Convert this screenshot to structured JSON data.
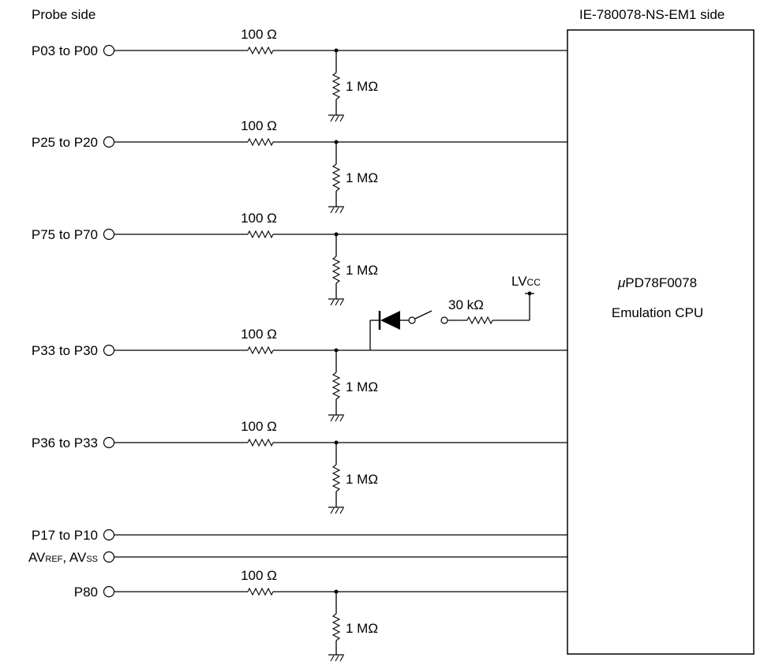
{
  "header": {
    "probe_side": "Probe side",
    "emulator_side": "IE-780078-NS-EM1 side"
  },
  "cpu": {
    "mu": "μ",
    "name": "PD78F0078",
    "subtitle": "Emulation CPU"
  },
  "lines": [
    {
      "label": "P03 to P00",
      "resistor": "100 Ω",
      "pulldown": "1 MΩ"
    },
    {
      "label": "P25 to P20",
      "resistor": "100 Ω",
      "pulldown": "1 MΩ"
    },
    {
      "label": "P75 to P70",
      "resistor": "100 Ω",
      "pulldown": "1 MΩ"
    },
    {
      "label": "P33 to P30",
      "resistor": "100 Ω",
      "pulldown": "1 MΩ"
    },
    {
      "label": "P36 to P33",
      "resistor": "100 Ω",
      "pulldown": "1 MΩ"
    },
    {
      "label": "P17 to P10"
    },
    {
      "label_parts": [
        "AV",
        "REF",
        ", AV",
        "SS"
      ]
    },
    {
      "label": "P80",
      "resistor": "100 Ω",
      "pulldown": "1 MΩ"
    }
  ],
  "switch_circuit": {
    "resistor": "30 kΩ",
    "supply_main": "LV",
    "supply_sub": "CC"
  }
}
